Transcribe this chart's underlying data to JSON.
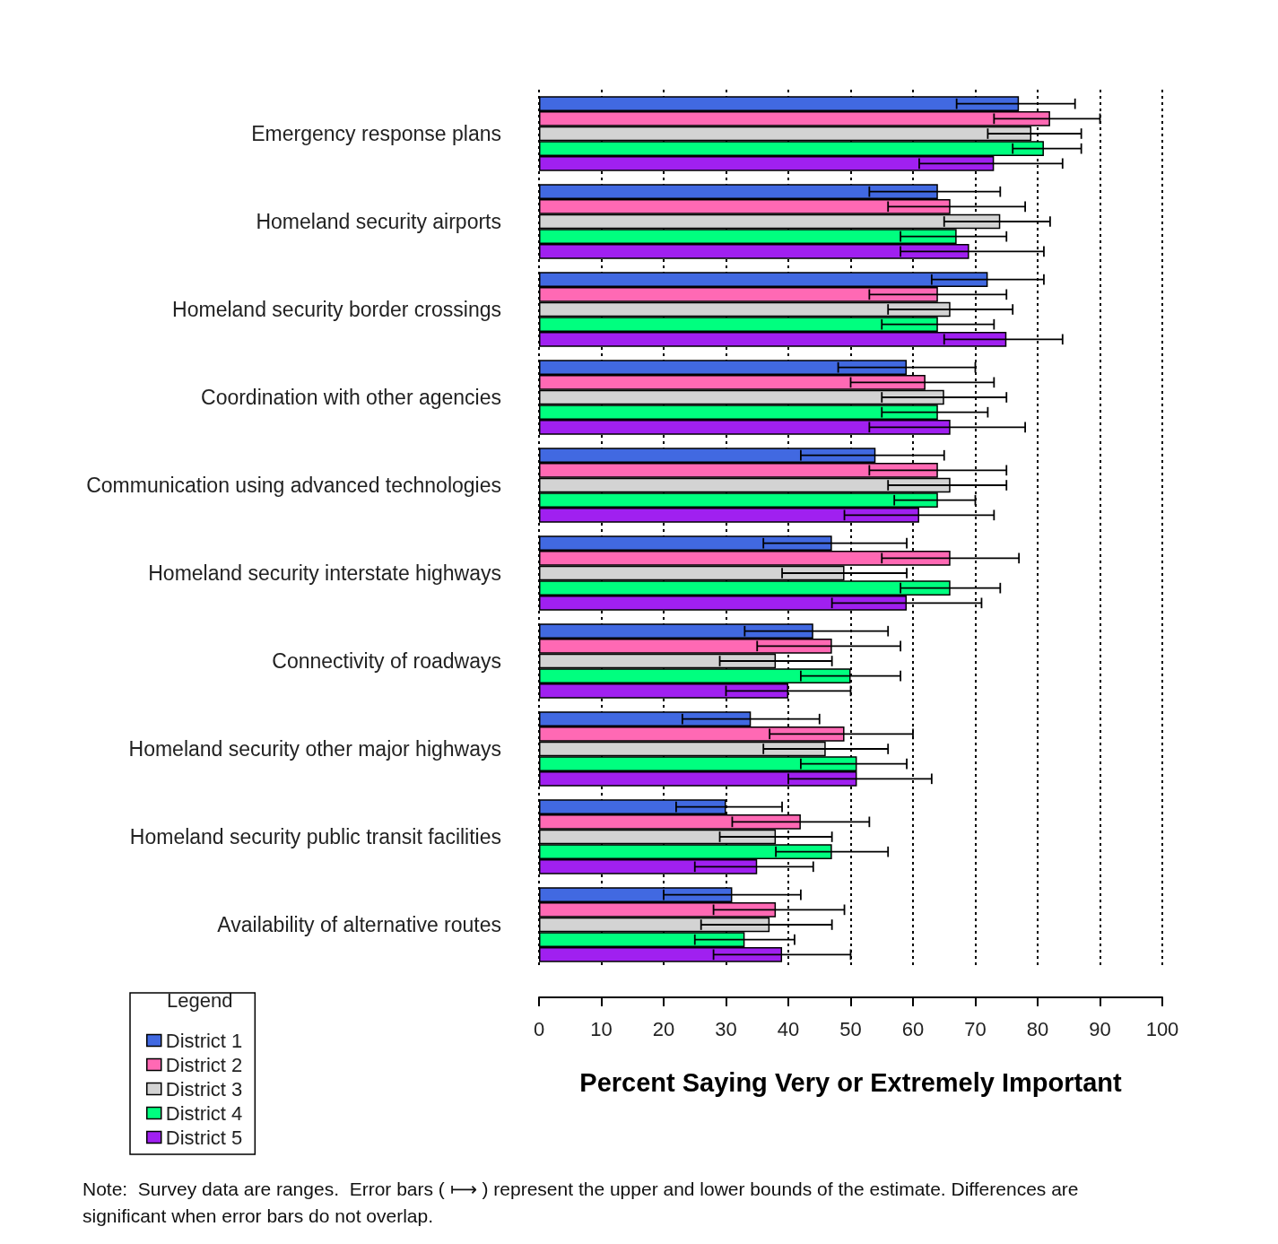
{
  "chart_data": {
    "type": "bar",
    "orientation": "horizontal",
    "xlabel": "Percent Saying Very or Extremely Important",
    "legend_title": "Legend",
    "legend": "bottom left",
    "grid": "x",
    "xlim": [
      0,
      100
    ],
    "xticks": [
      0,
      10,
      20,
      30,
      40,
      50,
      60,
      70,
      80,
      90,
      100
    ],
    "categories": [
      "Emergency response plans",
      "Homeland security airports",
      "Homeland security border crossings",
      "Coordination with other agencies",
      "Communication using advanced technologies",
      "Homeland security interstate highways",
      "Connectivity of roadways",
      "Homeland security other major highways",
      "Homeland security public transit facilities",
      "Availability of alternative routes"
    ],
    "series": [
      {
        "name": "District 1",
        "color": "#4169e1",
        "values": [
          77,
          64,
          72,
          59,
          54,
          47,
          44,
          34,
          30,
          31
        ],
        "errors": [
          [
            67,
            86
          ],
          [
            53,
            74
          ],
          [
            63,
            81
          ],
          [
            48,
            70
          ],
          [
            42,
            65
          ],
          [
            36,
            59
          ],
          [
            33,
            56
          ],
          [
            23,
            45
          ],
          [
            22,
            39
          ],
          [
            20,
            42
          ]
        ]
      },
      {
        "name": "District 2",
        "color": "#ff69b4",
        "values": [
          82,
          66,
          64,
          62,
          64,
          66,
          47,
          49,
          42,
          38
        ],
        "errors": [
          [
            73,
            90
          ],
          [
            56,
            78
          ],
          [
            53,
            75
          ],
          [
            50,
            73
          ],
          [
            53,
            75
          ],
          [
            55,
            77
          ],
          [
            35,
            58
          ],
          [
            37,
            60
          ],
          [
            31,
            53
          ],
          [
            28,
            49
          ]
        ]
      },
      {
        "name": "District 3",
        "color": "#d3d3d3",
        "values": [
          79,
          74,
          66,
          65,
          66,
          49,
          38,
          46,
          38,
          37
        ],
        "errors": [
          [
            72,
            87
          ],
          [
            65,
            82
          ],
          [
            56,
            76
          ],
          [
            55,
            75
          ],
          [
            56,
            75
          ],
          [
            39,
            59
          ],
          [
            29,
            47
          ],
          [
            36,
            56
          ],
          [
            29,
            47
          ],
          [
            26,
            47
          ]
        ]
      },
      {
        "name": "District 4",
        "color": "#00ff7f",
        "values": [
          81,
          67,
          64,
          64,
          64,
          66,
          50,
          51,
          47,
          33
        ],
        "errors": [
          [
            76,
            87
          ],
          [
            58,
            75
          ],
          [
            55,
            73
          ],
          [
            55,
            72
          ],
          [
            57,
            70
          ],
          [
            58,
            74
          ],
          [
            42,
            58
          ],
          [
            42,
            59
          ],
          [
            38,
            56
          ],
          [
            25,
            41
          ]
        ]
      },
      {
        "name": "District 5",
        "color": "#a020f0",
        "values": [
          73,
          69,
          75,
          66,
          61,
          59,
          40,
          51,
          35,
          39
        ],
        "errors": [
          [
            61,
            84
          ],
          [
            58,
            81
          ],
          [
            65,
            84
          ],
          [
            53,
            78
          ],
          [
            49,
            73
          ],
          [
            47,
            71
          ],
          [
            30,
            50
          ],
          [
            40,
            63
          ],
          [
            25,
            44
          ],
          [
            28,
            50
          ]
        ]
      }
    ],
    "annotations": [
      "Note:  Survey data are ranges.  Error bars ( ⟼ ) represent the upper and lower bounds of the estimate. Differences are significant when error bars do not overlap."
    ]
  }
}
